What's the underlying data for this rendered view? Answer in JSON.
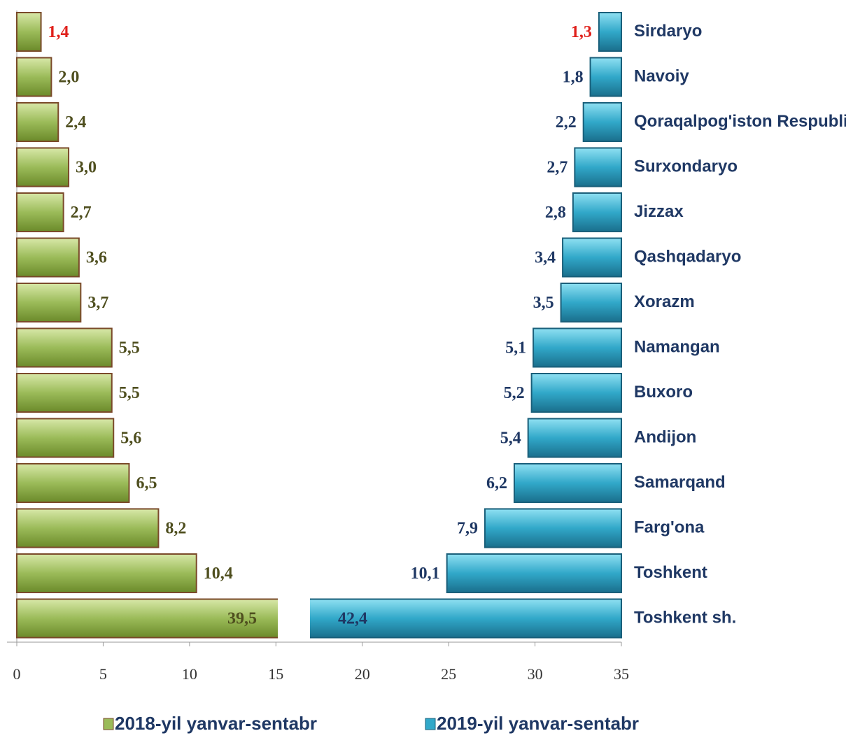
{
  "chart_data": {
    "type": "bar",
    "orientation": "horizontal",
    "categories": [
      "Sirdaryo",
      "Navoiy",
      "Qoraqalpog'iston Respublikasi",
      "Surxondaryo",
      "Jizzax",
      "Qashqadaryo",
      "Xorazm",
      "Namangan",
      "Buxoro",
      "Andijon",
      "Samarqand",
      "Farg'ona",
      "Toshkent",
      "Toshkent sh."
    ],
    "series": [
      {
        "name": "2018-yil yanvar-sentabr",
        "color": "#9bbb59",
        "values": [
          1.4,
          2.0,
          2.4,
          3.0,
          2.7,
          3.6,
          3.7,
          5.5,
          5.5,
          5.6,
          6.5,
          8.2,
          10.4,
          39.5
        ],
        "value_labels": [
          "1,4",
          "2,0",
          "2,4",
          "3,0",
          "2,7",
          "3,6",
          "3,7",
          "5,5",
          "5,5",
          "5,6",
          "6,5",
          "8,2",
          "10,4",
          "39,5"
        ],
        "value_label_colors": [
          "#e0201b",
          "#4f4f1f",
          "#4f4f1f",
          "#4f4f1f",
          "#4f4f1f",
          "#4f4f1f",
          "#4f4f1f",
          "#4f4f1f",
          "#4f4f1f",
          "#4f4f1f",
          "#4f4f1f",
          "#4f4f1f",
          "#4f4f1f",
          "#4f4f1f"
        ]
      },
      {
        "name": "2019-yil yanvar-sentabr",
        "color": "#31a8c9",
        "values": [
          1.3,
          1.8,
          2.2,
          2.7,
          2.8,
          3.4,
          3.5,
          5.1,
          5.2,
          5.4,
          6.2,
          7.9,
          10.1,
          42.4
        ],
        "value_labels": [
          "1,3",
          "1,8",
          "2,2",
          "2,7",
          "2,8",
          "3,4",
          "3,5",
          "5,1",
          "5,2",
          "5,4",
          "6,2",
          "7,9",
          "10,1",
          "42,4"
        ],
        "value_label_colors": [
          "#e0201b",
          "#1f3864",
          "#1f3864",
          "#1f3864",
          "#1f3864",
          "#1f3864",
          "#1f3864",
          "#1f3864",
          "#1f3864",
          "#1f3864",
          "#1f3864",
          "#1f3864",
          "#1f3864",
          "#1f3864"
        ]
      }
    ],
    "xlim": [
      0,
      35
    ],
    "xticks": [
      0,
      5,
      10,
      15,
      20,
      25,
      30,
      35
    ]
  }
}
